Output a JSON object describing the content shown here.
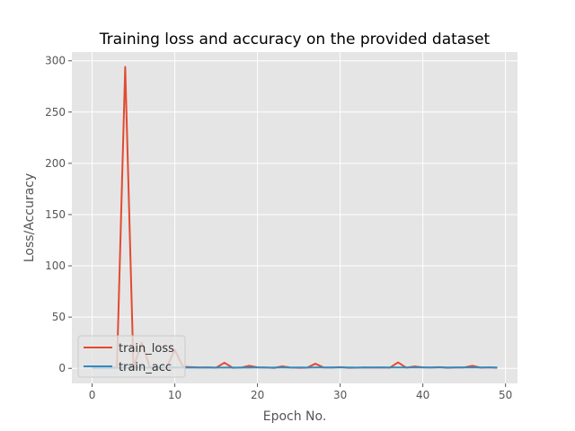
{
  "chart_data": {
    "type": "line",
    "title": "Training loss and accuracy on the provided dataset",
    "xlabel": "Epoch No.",
    "ylabel": "Loss/Accuracy",
    "xlim": [
      -2.45,
      51.45
    ],
    "ylim": [
      -14.7,
      308.5
    ],
    "xticks": [
      0,
      10,
      20,
      30,
      40,
      50
    ],
    "yticks": [
      0,
      50,
      100,
      150,
      200,
      250,
      300
    ],
    "grid": true,
    "legend_position": "lower-left",
    "x": [
      0,
      1,
      2,
      3,
      4,
      5,
      6,
      7,
      8,
      9,
      10,
      11,
      12,
      13,
      14,
      15,
      16,
      17,
      18,
      19,
      20,
      21,
      22,
      23,
      24,
      25,
      26,
      27,
      28,
      29,
      30,
      31,
      32,
      33,
      34,
      35,
      36,
      37,
      38,
      39,
      40,
      41,
      42,
      43,
      44,
      45,
      46,
      47,
      48,
      49
    ],
    "series": [
      {
        "name": "train_loss",
        "color": "#E24A33",
        "values": [
          0.5,
          0.7,
          0.6,
          0.9,
          294.0,
          0.8,
          25.0,
          0.7,
          0.6,
          0.9,
          18.0,
          1.5,
          1.2,
          0.8,
          1.0,
          0.6,
          5.5,
          0.5,
          0.7,
          2.5,
          1.0,
          0.8,
          0.4,
          2.0,
          0.7,
          0.5,
          0.6,
          4.5,
          0.8,
          0.7,
          1.2,
          0.5,
          0.6,
          0.8,
          0.7,
          0.9,
          0.6,
          5.8,
          0.6,
          1.8,
          1.0,
          0.7,
          1.2,
          0.5,
          0.8,
          0.9,
          2.5,
          0.6,
          1.0,
          0.5
        ]
      },
      {
        "name": "train_acc",
        "color": "#348ABD",
        "values": [
          0.35,
          0.4,
          0.45,
          0.5,
          0.55,
          0.6,
          0.6,
          0.62,
          0.65,
          0.7,
          0.7,
          0.72,
          0.7,
          0.75,
          0.75,
          0.7,
          0.72,
          0.75,
          0.78,
          0.75,
          0.8,
          0.75,
          0.78,
          0.8,
          0.78,
          0.8,
          0.75,
          0.8,
          0.82,
          0.8,
          0.8,
          0.82,
          0.78,
          0.8,
          0.82,
          0.8,
          0.82,
          0.8,
          0.82,
          0.8,
          0.82,
          0.8,
          0.82,
          0.8,
          0.82,
          0.8,
          0.82,
          0.8,
          0.82,
          0.8
        ]
      }
    ]
  }
}
